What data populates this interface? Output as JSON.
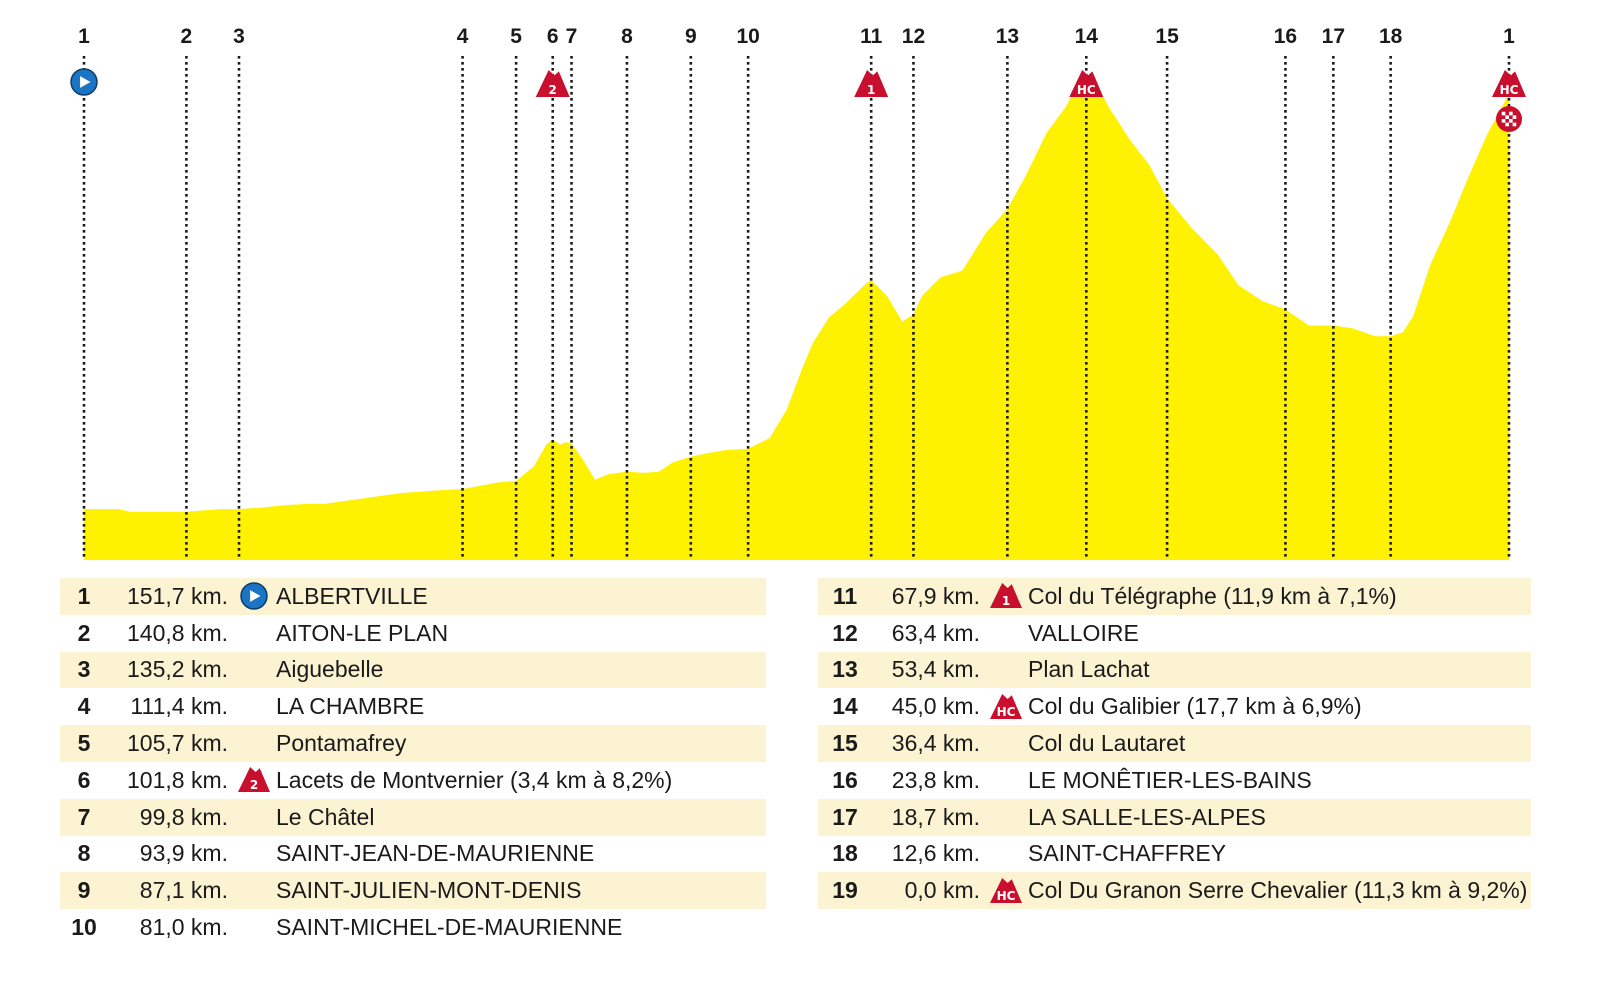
{
  "chart_data": {
    "type": "area",
    "x_unit": "km remaining",
    "x_range": [
      151.7,
      0
    ],
    "colors": {
      "fill": "#fff200",
      "start": "#1b74c4",
      "category": "#c8102e",
      "finish": "#c8102e"
    },
    "profile": {
      "x": [
        151.7,
        147.9,
        146.8,
        140.8,
        137.2,
        135.2,
        133.0,
        131.5,
        130.2,
        127.7,
        126.0,
        117.9,
        113.8,
        111.4,
        107.5,
        105.7,
        103.8,
        102.5,
        101.8,
        101.0,
        100.4,
        99.8,
        98.6,
        97.3,
        95.9,
        93.9,
        92.1,
        90.5,
        89.0,
        87.1,
        85.1,
        83.4,
        81.0,
        78.7,
        76.9,
        75.3,
        74.1,
        72.4,
        70.7,
        68.5,
        67.9,
        66.2,
        64.6,
        63.4,
        62.5,
        60.5,
        58.2,
        55.7,
        53.4,
        51.5,
        49.2,
        47.2,
        45.8,
        45.0,
        44.1,
        42.6,
        40.4,
        38.3,
        36.4,
        33.8,
        31.0,
        28.8,
        26.2,
        23.8,
        21.3,
        18.7,
        16.7,
        14.2,
        12.6,
        11.3,
        10.2,
        8.4,
        6.3,
        4.3,
        2.3,
        0.0
      ],
      "y": [
        3.8,
        3.8,
        3.6,
        3.6,
        3.8,
        3.8,
        3.9,
        4.0,
        4.1,
        4.2,
        4.2,
        5.0,
        5.2,
        5.3,
        5.8,
        5.9,
        7.0,
        8.6,
        9.0,
        8.6,
        8.8,
        8.7,
        7.5,
        6.0,
        6.4,
        6.6,
        6.5,
        6.6,
        7.3,
        7.7,
        8.0,
        8.2,
        8.3,
        9.1,
        11.2,
        14.2,
        16.2,
        18.1,
        19.1,
        20.6,
        20.9,
        19.7,
        17.8,
        18.3,
        19.7,
        21.1,
        21.6,
        24.4,
        26.2,
        28.6,
        31.9,
        33.8,
        35.6,
        36.3,
        35.8,
        33.8,
        31.4,
        29.5,
        27.0,
        24.8,
        22.8,
        20.5,
        19.3,
        18.7,
        17.5,
        17.5,
        17.3,
        16.7,
        16.7,
        17.0,
        18.2,
        22.0,
        25.2,
        28.6,
        31.8,
        34.8
      ]
    },
    "y_range": [
      0,
      40
    ],
    "checkpoints": [
      {
        "num": "1",
        "label": "1",
        "km": 151.7,
        "km_text": "151,7 km.",
        "name": "ALBERTVILLE",
        "marker": "start"
      },
      {
        "num": "2",
        "label": "2",
        "km": 140.8,
        "km_text": "140,8 km.",
        "name": "AITON-LE PLAN",
        "marker": ""
      },
      {
        "num": "3",
        "label": "3",
        "km": 135.2,
        "km_text": "135,2 km.",
        "name": "Aiguebelle",
        "marker": ""
      },
      {
        "num": "4",
        "label": "4",
        "km": 111.4,
        "km_text": "111,4 km.",
        "name": "LA CHAMBRE",
        "marker": ""
      },
      {
        "num": "5",
        "label": "5",
        "km": 105.7,
        "km_text": "105,7 km.",
        "name": "Pontamafrey",
        "marker": ""
      },
      {
        "num": "6",
        "label": "6",
        "km": 101.8,
        "km_text": "101,8 km.",
        "name": "Lacets de Montvernier (3,4 km à 8,2%)",
        "marker": "2"
      },
      {
        "num": "7",
        "label": "7",
        "km": 99.8,
        "km_text": "99,8 km.",
        "name": "Le Châtel",
        "marker": ""
      },
      {
        "num": "8",
        "label": "8",
        "km": 93.9,
        "km_text": "93,9 km.",
        "name": "SAINT-JEAN-DE-MAURIENNE",
        "marker": ""
      },
      {
        "num": "9",
        "label": "9",
        "km": 87.1,
        "km_text": "87,1 km.",
        "name": "SAINT-JULIEN-MONT-DENIS",
        "marker": ""
      },
      {
        "num": "10",
        "label": "10",
        "km": 81.0,
        "km_text": "81,0 km.",
        "name": "SAINT-MICHEL-DE-MAURIENNE",
        "marker": ""
      },
      {
        "num": "11",
        "label": "11",
        "km": 67.9,
        "km_text": "67,9 km.",
        "name": "Col du Télégraphe (11,9 km à 7,1%)",
        "marker": "1"
      },
      {
        "num": "12",
        "label": "12",
        "km": 63.4,
        "km_text": "63,4 km.",
        "name": "VALLOIRE",
        "marker": ""
      },
      {
        "num": "13",
        "label": "13",
        "km": 53.4,
        "km_text": "53,4 km.",
        "name": "Plan Lachat",
        "marker": ""
      },
      {
        "num": "14",
        "label": "14",
        "km": 45.0,
        "km_text": "45,0 km.",
        "name": "Col du Galibier (17,7 km à 6,9%)",
        "marker": "HC"
      },
      {
        "num": "15",
        "label": "15",
        "km": 36.4,
        "km_text": "36,4 km.",
        "name": "Col du Lautaret",
        "marker": ""
      },
      {
        "num": "16",
        "label": "16",
        "km": 23.8,
        "km_text": "23,8 km.",
        "name": "LE MONÊTIER-LES-BAINS",
        "marker": ""
      },
      {
        "num": "17",
        "label": "17",
        "km": 18.7,
        "km_text": "18,7 km.",
        "name": "LA SALLE-LES-ALPES",
        "marker": ""
      },
      {
        "num": "18",
        "label": "18",
        "km": 12.6,
        "km_text": "12,6 km.",
        "name": "SAINT-CHAFFREY",
        "marker": ""
      },
      {
        "num": "19",
        "label": "1",
        "km": 0.0,
        "km_text": "0,0 km.",
        "name": "Col Du Granon Serre Chevalier (11,3 km à 9,2%)",
        "marker": "HC",
        "finish": true
      }
    ]
  }
}
